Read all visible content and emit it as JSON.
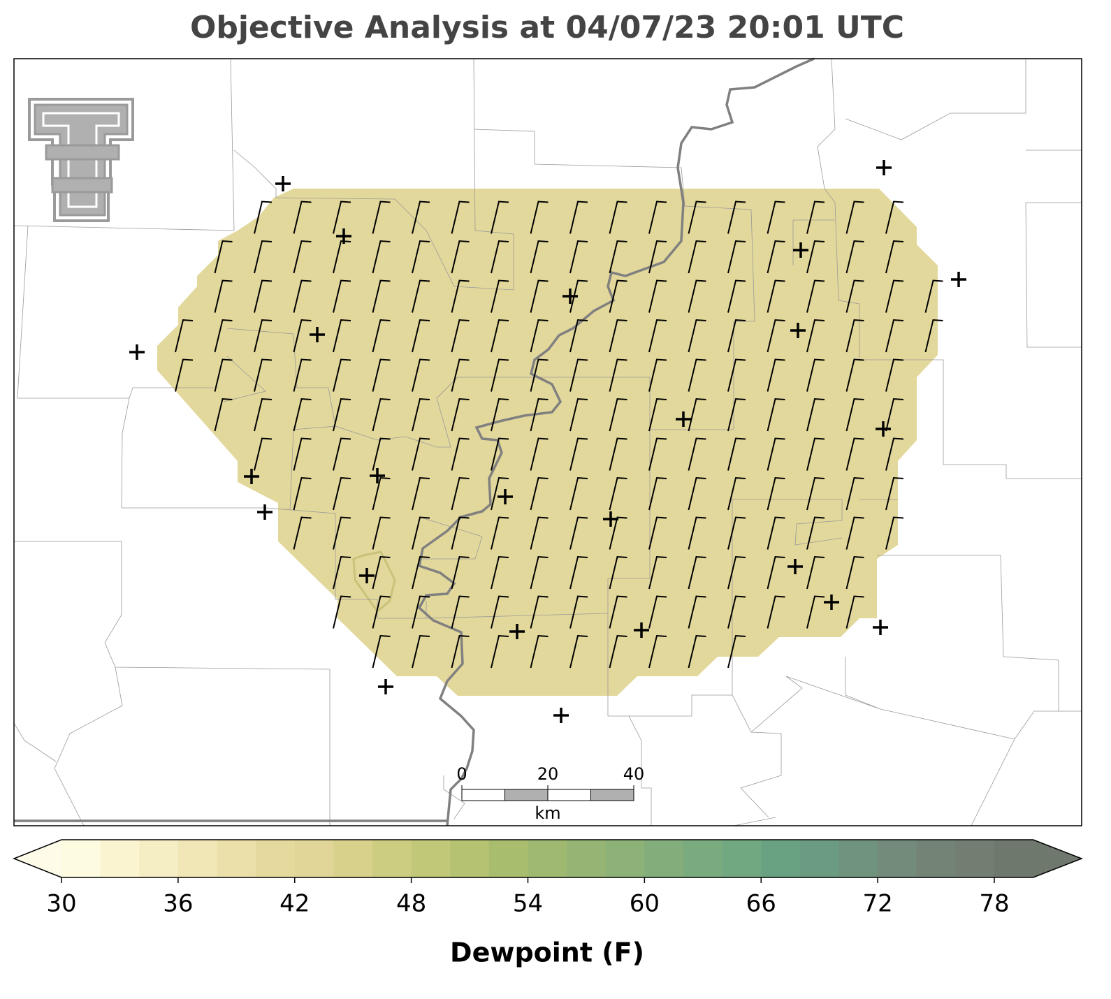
{
  "title": "Objective Analysis at 04/07/23 20:01 UTC",
  "scale_bar": {
    "ticks": [
      0,
      20,
      40
    ],
    "unit": "km"
  },
  "colorbar": {
    "label": "Dewpoint (F)",
    "ticks": [
      30,
      36,
      42,
      48,
      54,
      60,
      66,
      72,
      78
    ],
    "levels": [
      30,
      32,
      34,
      36,
      38,
      40,
      42,
      44,
      46,
      48,
      50,
      52,
      54,
      56,
      58,
      60,
      62,
      64,
      66,
      68,
      70,
      72,
      74,
      76,
      78,
      80
    ],
    "colors": [
      "#fdfbe0",
      "#faf4d0",
      "#f5edc3",
      "#f1e6b6",
      "#ece0aa",
      "#e6d99e",
      "#e1d697",
      "#d8d18c",
      "#cccd80",
      "#c1c878",
      "#b4c272",
      "#a9bd6e",
      "#9fb971",
      "#96b574",
      "#8db278",
      "#83ae7b",
      "#7aab7f",
      "#71a781",
      "#69a282",
      "#6b9b80",
      "#70937d",
      "#728b7a",
      "#738476",
      "#737e72",
      "#6f786c"
    ],
    "extend_low_color": "#fefce8",
    "extend_high_color": "#6f786c",
    "field_color": "#e3d89b"
  }
}
